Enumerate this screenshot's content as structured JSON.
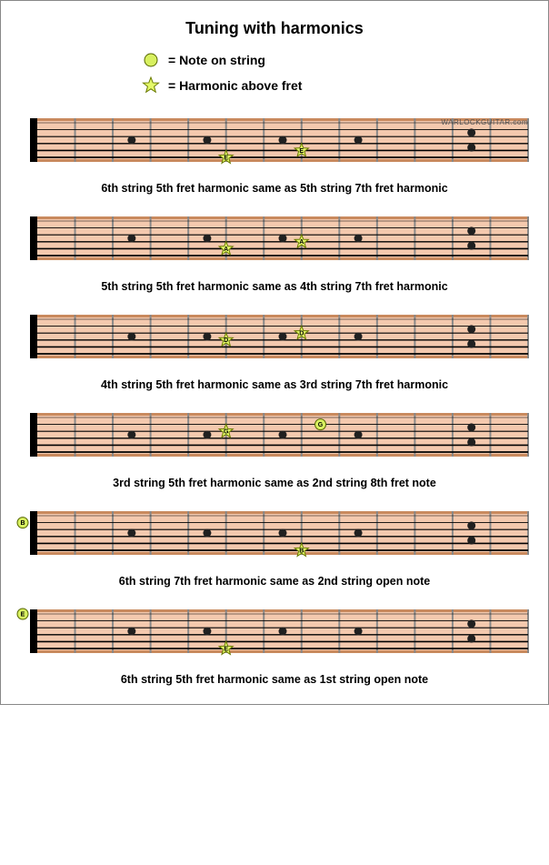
{
  "title": "Tuning with harmonics",
  "legend": {
    "note_label": "= Note on string",
    "harmonic_label": "= Harmonic above fret"
  },
  "watermark": "WARLOCKGUITAR.com",
  "fretboard": {
    "strings": 6,
    "visible_frets": 13,
    "nut_width": 8,
    "body_color": "#f4c9ae",
    "edge_color": "#c98a5e",
    "fret_color": "#888888",
    "string_color": "#000000",
    "dot_color": "#202020",
    "dot_frets": [
      3,
      5,
      7,
      9
    ],
    "double_dot_fret": 12
  },
  "marker_style": {
    "star_fill": "#e4f96a",
    "star_stroke": "#6a7a00",
    "circle_fill": "#d8f060",
    "circle_stroke": "#556600",
    "label_font_size": 7
  },
  "diagrams": [
    {
      "caption": "6th string 5th fret harmonic same as 5th string 7th fret harmonic",
      "show_watermark": true,
      "markers": [
        {
          "type": "star",
          "string": 6,
          "fret": 5,
          "on_fret": true,
          "label": "E"
        },
        {
          "type": "star",
          "string": 5,
          "fret": 7,
          "on_fret": true,
          "label": "E"
        }
      ]
    },
    {
      "caption": "5th string 5th fret harmonic same as 4th string 7th fret harmonic",
      "markers": [
        {
          "type": "star",
          "string": 5,
          "fret": 5,
          "on_fret": true,
          "label": "A"
        },
        {
          "type": "star",
          "string": 4,
          "fret": 7,
          "on_fret": true,
          "label": "A"
        }
      ]
    },
    {
      "caption": "4th string 5th fret harmonic same as 3rd string 7th fret harmonic",
      "markers": [
        {
          "type": "star",
          "string": 4,
          "fret": 5,
          "on_fret": true,
          "label": "D"
        },
        {
          "type": "star",
          "string": 3,
          "fret": 7,
          "on_fret": true,
          "label": "D"
        }
      ]
    },
    {
      "caption": "3rd string 5th fret harmonic same as 2nd string 8th fret note",
      "markers": [
        {
          "type": "star",
          "string": 3,
          "fret": 5,
          "on_fret": true,
          "label": "G"
        },
        {
          "type": "circle",
          "string": 2,
          "fret": 8,
          "on_fret": false,
          "label": "G"
        }
      ]
    },
    {
      "caption": "6th string 7th fret harmonic same as 2nd string open note",
      "markers": [
        {
          "type": "star",
          "string": 6,
          "fret": 7,
          "on_fret": true,
          "label": "B"
        },
        {
          "type": "circle",
          "string": 2,
          "fret": 0,
          "on_fret": false,
          "label": "B"
        }
      ]
    },
    {
      "caption": "6th string 5th fret harmonic same as 1st string open note",
      "markers": [
        {
          "type": "star",
          "string": 6,
          "fret": 5,
          "on_fret": true,
          "label": "E"
        },
        {
          "type": "circle",
          "string": 1,
          "fret": 0,
          "on_fret": false,
          "label": "E"
        }
      ]
    }
  ]
}
